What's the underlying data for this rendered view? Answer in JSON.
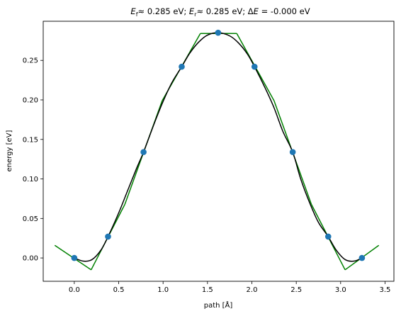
{
  "chart_data": {
    "type": "line",
    "title": {
      "parts": [
        {
          "text": "E",
          "style": "italic"
        },
        {
          "text": "f",
          "style": "sub"
        },
        {
          "text": "≈  0.285 eV; ",
          "style": "normal"
        },
        {
          "text": "E",
          "style": "italic"
        },
        {
          "text": "r",
          "style": "sub"
        },
        {
          "text": "≈  0.285 eV; Δ",
          "style": "normal"
        },
        {
          "text": "E",
          "style": "italic"
        },
        {
          "text": " = -0.000 eV",
          "style": "normal"
        }
      ]
    },
    "xlabel": "path [Å]",
    "ylabel": "energy [eV]",
    "xlim": [
      -0.35,
      3.6
    ],
    "ylim": [
      -0.0295,
      0.2995
    ],
    "xticks": [
      0.0,
      0.5,
      1.0,
      1.5,
      2.0,
      2.5,
      3.0,
      3.5
    ],
    "xtick_labels": [
      "0.0",
      "0.5",
      "1.0",
      "1.5",
      "2.0",
      "2.5",
      "3.0",
      "3.5"
    ],
    "yticks": [
      0.0,
      0.05,
      0.1,
      0.15,
      0.2,
      0.25
    ],
    "ytick_labels": [
      "0.00",
      "0.05",
      "0.10",
      "0.15",
      "0.20",
      "0.25"
    ],
    "grid": false,
    "colors": {
      "points": "#1f77b4",
      "fit": "#000000",
      "tangents": "#008000"
    },
    "images": {
      "x": [
        0.0,
        0.38,
        0.78,
        1.21,
        1.62,
        2.03,
        2.46,
        2.86,
        3.24
      ],
      "y": [
        0.0,
        0.027,
        0.134,
        0.242,
        0.285,
        0.242,
        0.134,
        0.027,
        0.0
      ]
    },
    "fit_curve": {
      "x": [
        0.0,
        0.1,
        0.2,
        0.3,
        0.38,
        0.5,
        0.6,
        0.7,
        0.78,
        0.9,
        1.0,
        1.1,
        1.21,
        1.3,
        1.4,
        1.5,
        1.62,
        1.75,
        1.85,
        1.95,
        2.03,
        2.15,
        2.25,
        2.35,
        2.46,
        2.55,
        2.65,
        2.75,
        2.86,
        2.95,
        3.05,
        3.15,
        3.24
      ],
      "y": [
        0.0,
        -0.004,
        -0.002,
        0.01,
        0.027,
        0.057,
        0.085,
        0.113,
        0.134,
        0.17,
        0.198,
        0.222,
        0.242,
        0.259,
        0.273,
        0.282,
        0.285,
        0.281,
        0.272,
        0.258,
        0.242,
        0.215,
        0.19,
        0.16,
        0.134,
        0.1,
        0.07,
        0.045,
        0.027,
        0.01,
        -0.002,
        -0.004,
        0.0
      ]
    },
    "tangents": [
      {
        "x": [
          -0.22,
          0.19
        ],
        "y": [
          0.016,
          -0.015
        ]
      },
      {
        "x": [
          0.19,
          0.57
        ],
        "y": [
          -0.015,
          0.068
        ]
      },
      {
        "x": [
          0.57,
          0.99
        ],
        "y": [
          0.068,
          0.199
        ]
      },
      {
        "x": [
          0.99,
          1.42
        ],
        "y": [
          0.199,
          0.284
        ]
      },
      {
        "x": [
          1.42,
          1.83
        ],
        "y": [
          0.284,
          0.284
        ]
      },
      {
        "x": [
          1.83,
          2.25
        ],
        "y": [
          0.284,
          0.199
        ]
      },
      {
        "x": [
          2.25,
          2.67
        ],
        "y": [
          0.199,
          0.068
        ]
      },
      {
        "x": [
          2.67,
          3.05
        ],
        "y": [
          0.068,
          -0.015
        ]
      },
      {
        "x": [
          3.05,
          3.43
        ],
        "y": [
          -0.015,
          0.016
        ]
      }
    ]
  }
}
